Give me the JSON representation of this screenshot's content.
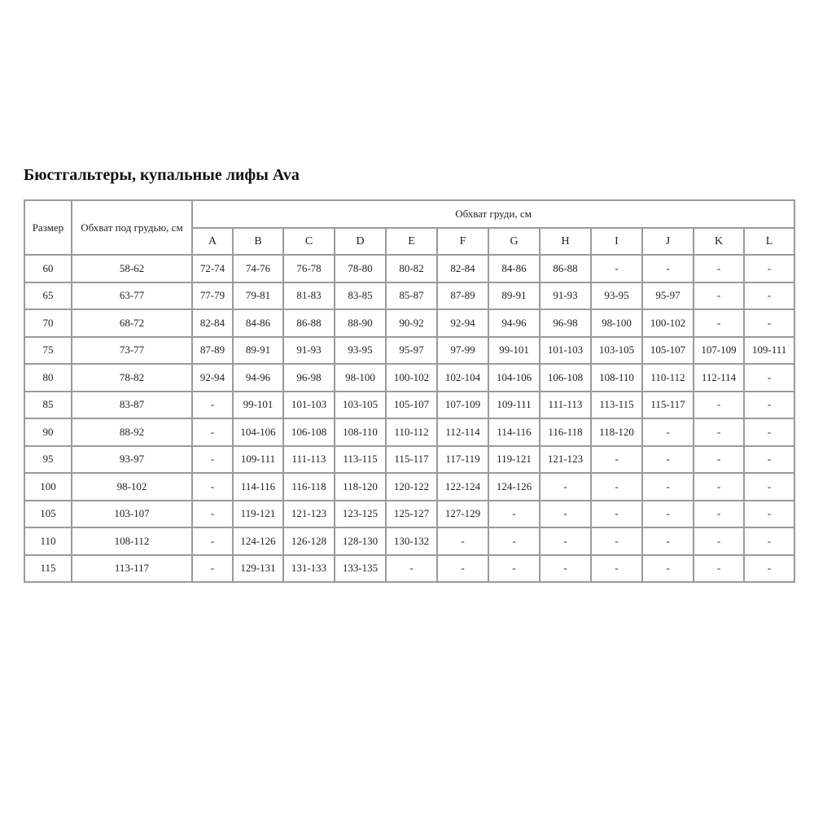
{
  "title": "Бюстгальтеры, купальные лифы Ava",
  "table": {
    "headers": {
      "size": "Размер",
      "underbust": "Обхват под грудью, см",
      "bust": "Обхват груди, см",
      "cups": [
        "A",
        "B",
        "C",
        "D",
        "E",
        "F",
        "G",
        "H",
        "I",
        "J",
        "K",
        "L"
      ]
    },
    "rows": [
      {
        "size": "60",
        "underbust": "58-62",
        "cups": [
          "72-74",
          "74-76",
          "76-78",
          "78-80",
          "80-82",
          "82-84",
          "84-86",
          "86-88",
          "-",
          "-",
          "-",
          "-"
        ]
      },
      {
        "size": "65",
        "underbust": "63-77",
        "cups": [
          "77-79",
          "79-81",
          "81-83",
          "83-85",
          "85-87",
          "87-89",
          "89-91",
          "91-93",
          "93-95",
          "95-97",
          "-",
          "-"
        ]
      },
      {
        "size": "70",
        "underbust": "68-72",
        "cups": [
          "82-84",
          "84-86",
          "86-88",
          "88-90",
          "90-92",
          "92-94",
          "94-96",
          "96-98",
          "98-100",
          "100-102",
          "-",
          "-"
        ]
      },
      {
        "size": "75",
        "underbust": "73-77",
        "cups": [
          "87-89",
          "89-91",
          "91-93",
          "93-95",
          "95-97",
          "97-99",
          "99-101",
          "101-103",
          "103-105",
          "105-107",
          "107-109",
          "109-111"
        ]
      },
      {
        "size": "80",
        "underbust": "78-82",
        "cups": [
          "92-94",
          "94-96",
          "96-98",
          "98-100",
          "100-102",
          "102-104",
          "104-106",
          "106-108",
          "108-110",
          "110-112",
          "112-114",
          "-"
        ]
      },
      {
        "size": "85",
        "underbust": "83-87",
        "cups": [
          "-",
          "99-101",
          "101-103",
          "103-105",
          "105-107",
          "107-109",
          "109-111",
          "111-113",
          "113-115",
          "115-117",
          "-",
          "-"
        ]
      },
      {
        "size": "90",
        "underbust": "88-92",
        "cups": [
          "-",
          "104-106",
          "106-108",
          "108-110",
          "110-112",
          "112-114",
          "114-116",
          "116-118",
          "118-120",
          "-",
          "-",
          "-"
        ]
      },
      {
        "size": "95",
        "underbust": "93-97",
        "cups": [
          "-",
          "109-111",
          "111-113",
          "113-115",
          "115-117",
          "117-119",
          "119-121",
          "121-123",
          "-",
          "-",
          "-",
          "-"
        ]
      },
      {
        "size": "100",
        "underbust": "98-102",
        "cups": [
          "-",
          "114-116",
          "116-118",
          "118-120",
          "120-122",
          "122-124",
          "124-126",
          "-",
          "-",
          "-",
          "-",
          "-"
        ]
      },
      {
        "size": "105",
        "underbust": "103-107",
        "cups": [
          "-",
          "119-121",
          "121-123",
          "123-125",
          "125-127",
          "127-129",
          "-",
          "-",
          "-",
          "-",
          "-",
          "-"
        ]
      },
      {
        "size": "110",
        "underbust": "108-112",
        "cups": [
          "-",
          "124-126",
          "126-128",
          "128-130",
          "130-132",
          "-",
          "-",
          "-",
          "-",
          "-",
          "-",
          "-"
        ]
      },
      {
        "size": "115",
        "underbust": "113-117",
        "cups": [
          "-",
          "129-131",
          "131-133",
          "133-135",
          "-",
          "-",
          "-",
          "-",
          "-",
          "-",
          "-",
          "-"
        ]
      }
    ]
  }
}
